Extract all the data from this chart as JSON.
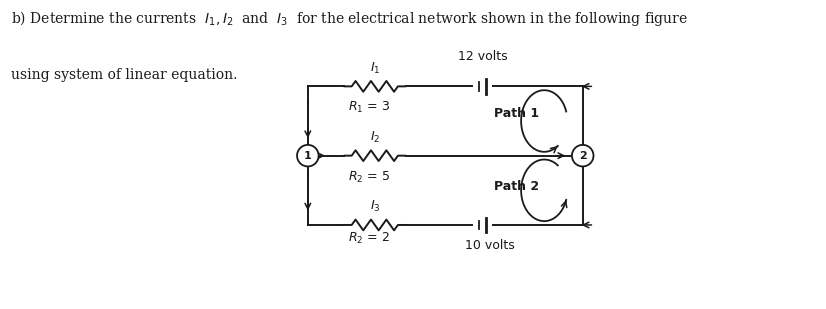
{
  "title_line1": "b) Determine the currents  $I_1, I_2$  and  $I_3$  for the electrical network shown in the following figure",
  "title_line2": "using system of linear equation.",
  "label_12volts": "12 volts",
  "label_10volts": "10 volts",
  "label_R1": "$R_1$ = 3",
  "label_R2a": "$R_2$ = 5",
  "label_R2b": "$R_2$ = 2",
  "label_I1": "$I_1$",
  "label_I2": "$I_2$",
  "label_I3": "$I_3$",
  "label_Path1": "Path 1",
  "label_Path2": "Path 2",
  "label_node1": "1",
  "label_node2": "2",
  "bg_color": "#ffffff",
  "line_color": "#1a1a1a",
  "text_color": "#1a1a1a"
}
